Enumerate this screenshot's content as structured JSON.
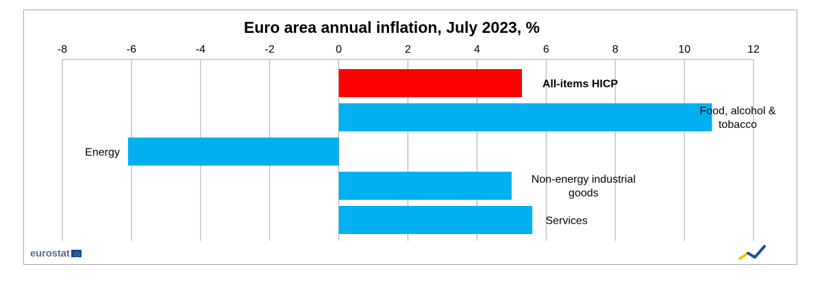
{
  "chart_data": {
    "type": "bar",
    "orientation": "horizontal",
    "title": "Euro area annual inflation, July 2023, %",
    "xlabel": "",
    "ylabel": "",
    "xlim": [
      -8,
      12
    ],
    "x_ticks": [
      "-8",
      "-6",
      "-4",
      "-2",
      "0",
      "2",
      "4",
      "6",
      "8",
      "10",
      "12"
    ],
    "x_tick_values": [
      -8,
      -6,
      -4,
      -2,
      0,
      2,
      4,
      6,
      8,
      10,
      12
    ],
    "x_axis_position": "top",
    "grid": "vertical",
    "legend": "none",
    "categories": [
      [
        "All-items HICP"
      ],
      [
        "Food, alcohol &",
        "tobacco"
      ],
      [
        "Energy"
      ],
      [
        "Non-energy  industrial",
        "goods"
      ],
      [
        "Services"
      ]
    ],
    "values": [
      5.3,
      10.8,
      -6.1,
      5.0,
      5.6
    ],
    "bar_colors": [
      "#ff0000",
      "#00b0f0",
      "#00b0f0",
      "#00b0f0",
      "#00b0f0"
    ],
    "label_bold": [
      true,
      false,
      false,
      false,
      false
    ]
  },
  "footer": {
    "logo_text": "eurostat",
    "flag_icon": "eu-flag-icon",
    "trend_icon": "trend-arrow-icon"
  }
}
